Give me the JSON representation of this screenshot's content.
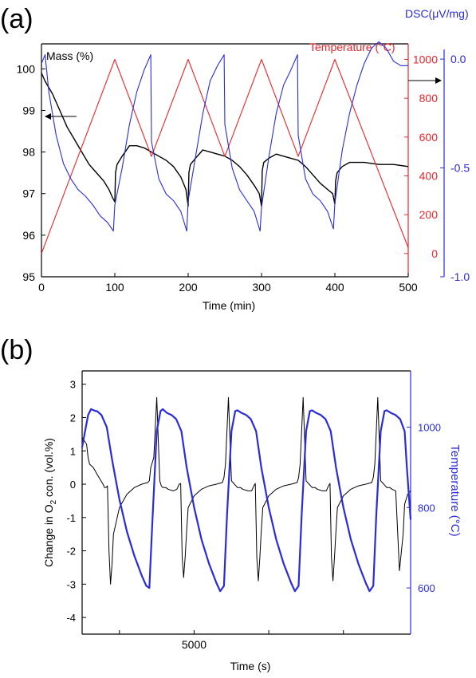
{
  "panels": {
    "a": {
      "label": "(a)"
    },
    "b": {
      "label": "(b)"
    }
  },
  "colors": {
    "black": "#000000",
    "red": "#e8262b",
    "blue": "#2b2bd9",
    "gray": "#555555"
  },
  "chart_data": [
    {
      "id": "a",
      "type": "line",
      "xlabel": "Time (min)",
      "xlim": [
        0,
        500
      ],
      "xticks": [
        0,
        100,
        200,
        300,
        400,
        500
      ],
      "axes": {
        "mass": {
          "label": "Mass (%)",
          "range": [
            95,
            100.6
          ],
          "ticks": [
            95,
            96,
            97,
            98,
            99,
            100
          ]
        },
        "temp": {
          "label": "Temperature (°C)",
          "range": [
            -120,
            1080
          ],
          "ticks": [
            0,
            200,
            400,
            600,
            800,
            1000
          ]
        },
        "dsc": {
          "label": "DSC(μV/mg)",
          "range": [
            -1.0,
            0.07
          ],
          "ticks": [
            0.0,
            -0.5,
            -1.0
          ],
          "tick_labels": [
            "0.0",
            "-0.5",
            "-1.0"
          ]
        }
      },
      "series": [
        {
          "name": "Mass (%)",
          "axis": "mass",
          "color": "#000000",
          "x": [
            0,
            5,
            15,
            25,
            35,
            45,
            55,
            65,
            75,
            85,
            92,
            97,
            100,
            101,
            103,
            110,
            120,
            130,
            140,
            150,
            160,
            170,
            180,
            190,
            197,
            200,
            201,
            203,
            210,
            220,
            230,
            240,
            250,
            260,
            270,
            280,
            290,
            297,
            300,
            301,
            303,
            310,
            320,
            330,
            340,
            350,
            360,
            370,
            380,
            390,
            397,
            400,
            401,
            403,
            410,
            420,
            430,
            440,
            460,
            480,
            500
          ],
          "y": [
            99.9,
            99.7,
            99.4,
            99.0,
            98.6,
            98.3,
            98.0,
            97.7,
            97.5,
            97.3,
            97.1,
            96.9,
            96.8,
            97.5,
            97.7,
            97.9,
            98.15,
            98.15,
            98.1,
            98.0,
            97.9,
            97.8,
            97.65,
            97.4,
            97.1,
            96.7,
            97.5,
            97.7,
            97.85,
            98.05,
            98.0,
            97.95,
            97.9,
            97.8,
            97.65,
            97.45,
            97.2,
            97.0,
            96.7,
            97.55,
            97.75,
            97.85,
            97.95,
            97.9,
            97.85,
            97.8,
            97.65,
            97.45,
            97.25,
            97.1,
            97.0,
            96.75,
            97.3,
            97.5,
            97.65,
            97.75,
            97.75,
            97.75,
            97.7,
            97.7,
            97.65
          ]
        },
        {
          "name": "Temperature (°C)",
          "axis": "temp",
          "color": "#e8262b",
          "x": [
            0,
            100,
            150,
            200,
            250,
            300,
            350,
            400,
            500
          ],
          "y": [
            0,
            1000,
            500,
            1000,
            500,
            1000,
            500,
            1000,
            30
          ]
        },
        {
          "name": "DSC(μV/mg)",
          "axis": "dsc",
          "color": "#2b2bd9",
          "x": [
            0,
            5,
            10,
            20,
            30,
            40,
            50,
            60,
            70,
            80,
            90,
            98,
            100,
            110,
            120,
            130,
            140,
            149,
            150,
            160,
            170,
            180,
            190,
            198,
            200,
            210,
            220,
            230,
            240,
            249,
            250,
            260,
            270,
            280,
            290,
            298,
            300,
            310,
            320,
            330,
            340,
            349,
            350,
            360,
            370,
            380,
            390,
            398,
            400,
            410,
            420,
            430,
            440,
            450,
            460,
            470,
            480,
            490,
            500
          ],
          "y": [
            -0.02,
            0.02,
            -0.15,
            -0.35,
            -0.48,
            -0.55,
            -0.6,
            -0.63,
            -0.67,
            -0.72,
            -0.75,
            -0.79,
            -0.67,
            -0.5,
            -0.3,
            -0.15,
            -0.05,
            0.02,
            -0.38,
            -0.55,
            -0.62,
            -0.65,
            -0.7,
            -0.79,
            -0.65,
            -0.45,
            -0.25,
            -0.1,
            -0.03,
            0.02,
            -0.3,
            -0.5,
            -0.6,
            -0.65,
            -0.7,
            -0.79,
            -0.68,
            -0.45,
            -0.25,
            -0.12,
            -0.05,
            0.02,
            -0.35,
            -0.55,
            -0.62,
            -0.65,
            -0.7,
            -0.78,
            -0.66,
            -0.42,
            -0.25,
            -0.12,
            -0.02,
            0.05,
            0.08,
            0.05,
            -0.01,
            -0.03,
            -0.03
          ]
        }
      ]
    },
    {
      "id": "b",
      "type": "line",
      "xlabel": "Time (s)",
      "xlim": [
        3500,
        7900
      ],
      "xticks": [
        4000,
        5000,
        6000,
        7000
      ],
      "xtick_labels": [
        "",
        "5000",
        "",
        ""
      ],
      "axes": {
        "o2": {
          "label_parts": [
            "Change in O",
            "2",
            " con. (vol.%)"
          ],
          "range": [
            -4.5,
            3.4
          ],
          "ticks": [
            -4,
            -3,
            -2,
            -1,
            0,
            1,
            2,
            3
          ]
        },
        "temp": {
          "label": "Temperature (°C)",
          "range": [
            485,
            1140
          ],
          "ticks": [
            600,
            800,
            1000
          ]
        }
      },
      "series": [
        {
          "name": "Change in O2 con.",
          "axis": "o2",
          "color": "#000000",
          "x": [
            3500,
            3560,
            3580,
            3600,
            3650,
            3700,
            3780,
            3800,
            3820,
            3840,
            3860,
            3880,
            3900,
            3920,
            4000,
            4100,
            4200,
            4300,
            4380,
            4400,
            4420,
            4460,
            4500,
            4540,
            4560,
            4580,
            4620,
            4650,
            4720,
            4770,
            4800,
            4820,
            4840,
            4860,
            4880,
            4900,
            4920,
            5000,
            5100,
            5200,
            5300,
            5380,
            5400,
            5420,
            5460,
            5500,
            5540,
            5560,
            5580,
            5620,
            5650,
            5720,
            5770,
            5800,
            5820,
            5840,
            5860,
            5880,
            5900,
            5920,
            6000,
            6100,
            6200,
            6300,
            6380,
            6400,
            6420,
            6460,
            6500,
            6540,
            6560,
            6580,
            6620,
            6650,
            6720,
            6770,
            6800,
            6820,
            6840,
            6860,
            6880,
            6900,
            6920,
            7000,
            7100,
            7200,
            7300,
            7380,
            7400,
            7420,
            7460,
            7500,
            7540,
            7560,
            7580,
            7620,
            7650,
            7700,
            7750,
            7800,
            7820,
            7860,
            7900
          ],
          "y": [
            1.4,
            1.2,
            0.8,
            0.6,
            0.5,
            0.3,
            0.0,
            -0.1,
            -0.1,
            -0.05,
            -2.0,
            -3.0,
            -2.4,
            -1.5,
            -0.7,
            -0.3,
            -0.1,
            0.0,
            0.05,
            0.1,
            0.5,
            0.8,
            2.6,
            0.1,
            -0.05,
            -0.1,
            -0.1,
            -0.15,
            -0.2,
            -0.15,
            0.0,
            0.02,
            -2.2,
            -2.8,
            -2.2,
            -1.4,
            -0.7,
            -0.35,
            -0.15,
            -0.05,
            0.0,
            0.05,
            0.2,
            0.6,
            2.6,
            0.1,
            0.0,
            -0.05,
            -0.1,
            -0.1,
            -0.15,
            -0.2,
            -0.2,
            -0.05,
            0.02,
            -2.2,
            -2.9,
            -2.2,
            -1.4,
            -0.7,
            -0.35,
            -0.15,
            -0.05,
            0.0,
            0.05,
            0.2,
            0.6,
            2.6,
            0.1,
            0.0,
            -0.05,
            -0.1,
            -0.1,
            -0.15,
            -0.2,
            -0.2,
            -0.05,
            0.02,
            -2.2,
            -2.9,
            -2.2,
            -1.4,
            -0.7,
            -0.35,
            -0.15,
            -0.05,
            0.0,
            0.05,
            0.2,
            0.6,
            2.6,
            0.1,
            0.0,
            -0.05,
            -0.1,
            -0.1,
            -0.15,
            -0.2,
            -2.6,
            -1.5,
            -0.6,
            -0.3,
            -0.2
          ]
        },
        {
          "name": "Temperature (°C)",
          "axis": "temp",
          "color": "#2b2bd9",
          "x": [
            3500,
            3540,
            3580,
            3620,
            3680,
            3700,
            3760,
            3830,
            3900,
            3950,
            4000,
            4100,
            4200,
            4300,
            4360,
            4400,
            4440,
            4500,
            4550,
            4580,
            4640,
            4700,
            4760,
            4830,
            4900,
            4950,
            5000,
            5100,
            5200,
            5300,
            5350,
            5400,
            5440,
            5500,
            5550,
            5580,
            5640,
            5700,
            5760,
            5830,
            5900,
            5950,
            6000,
            6100,
            6200,
            6300,
            6350,
            6400,
            6440,
            6500,
            6550,
            6580,
            6640,
            6700,
            6760,
            6830,
            6900,
            6950,
            7000,
            7100,
            7200,
            7300,
            7350,
            7400,
            7440,
            7500,
            7550,
            7580,
            7640,
            7700,
            7760,
            7820,
            7850,
            7900
          ],
          "y": [
            950,
            990,
            1030,
            1045,
            1040,
            1040,
            1030,
            1000,
            920,
            870,
            820,
            740,
            680,
            630,
            605,
            600,
            760,
            990,
            1040,
            1045,
            1035,
            1030,
            1020,
            990,
            900,
            850,
            800,
            720,
            660,
            612,
            592,
            605,
            780,
            990,
            1040,
            1042,
            1035,
            1030,
            1020,
            990,
            900,
            850,
            800,
            720,
            660,
            612,
            592,
            605,
            780,
            990,
            1040,
            1042,
            1035,
            1030,
            1020,
            990,
            900,
            850,
            800,
            720,
            660,
            612,
            592,
            605,
            780,
            990,
            1040,
            1042,
            1035,
            1030,
            1020,
            990,
            900,
            770
          ]
        }
      ]
    }
  ]
}
